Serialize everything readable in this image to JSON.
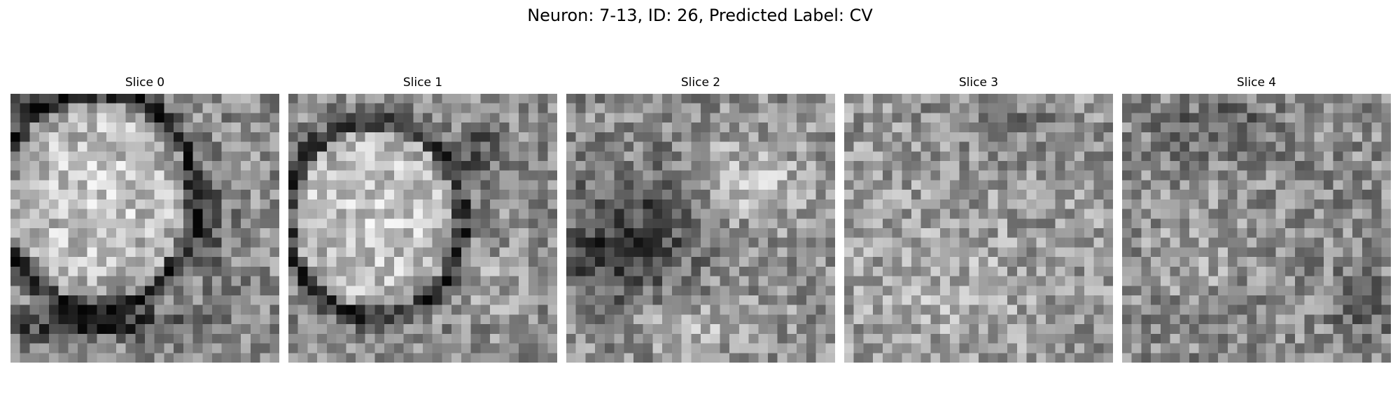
{
  "figure": {
    "title": "Neuron: 7-13, ID: 26, Predicted Label: CV"
  },
  "panels": [
    {
      "title": "Slice 0",
      "description": "grayscale microscopy patch, bright rounded cell body in upper-left, dark membrane band along lower edge"
    },
    {
      "title": "Slice 1",
      "description": "grayscale microscopy patch, bright rounded cell body on left bordered by dark arc"
    },
    {
      "title": "Slice 2",
      "description": "grayscale microscopy patch, dark region at left center, brighter upper-right and bottom"
    },
    {
      "title": "Slice 3",
      "description": "grayscale microscopy patch, noisy mid-gray texture with dark specks at top"
    },
    {
      "title": "Slice 4",
      "description": "grayscale microscopy patch, noisy texture with dark patches at top and lower-right"
    }
  ]
}
